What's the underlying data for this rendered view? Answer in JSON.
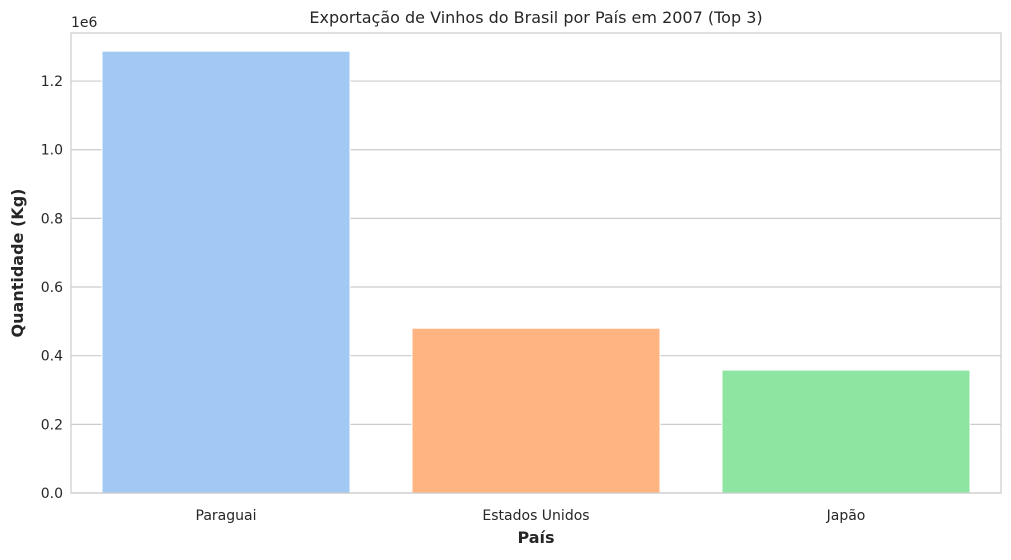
{
  "chart_data": {
    "type": "bar",
    "title": "Exportação de Vinhos do Brasil por País em 2007 (Top 3)",
    "xlabel": "País",
    "ylabel": "Quantidade (Kg)",
    "categories": [
      "Paraguai",
      "Estados Unidos",
      "Japão"
    ],
    "values": [
      1287000,
      480000,
      358000
    ],
    "colors": [
      "#a1c9f4",
      "#ffb482",
      "#8de5a1"
    ],
    "ylim": [
      0,
      1340000
    ],
    "y_ticks": [
      0,
      200000,
      400000,
      600000,
      800000,
      1000000,
      1200000
    ],
    "y_tick_labels": [
      "0.0",
      "0.2",
      "0.4",
      "0.6",
      "0.8",
      "1.0",
      "1.2"
    ],
    "y_offset_label": "1e6",
    "grid": "horizontal",
    "legend": "none"
  }
}
